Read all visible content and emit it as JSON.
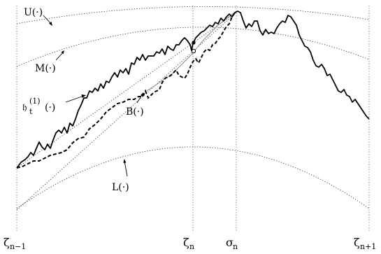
{
  "labels": {
    "U": "U(·)",
    "M": "M(·)",
    "h_base": "𝔥",
    "h_sub": "t",
    "h_sup": "(1)",
    "h_arg": "(·)",
    "B": "B(·)",
    "L": "L(·)"
  },
  "axis_labels": {
    "zeta_prev_base": "ζ",
    "zeta_prev_sub": "n−1",
    "zeta_n_base": "ζ",
    "zeta_n_sub": "n",
    "sigma_base": "σ",
    "sigma_sub": "n",
    "zeta_next_base": "ζ",
    "zeta_next_sub": "n+1"
  },
  "colors": {
    "ink": "#000000",
    "guide": "#555555",
    "gray_path": "#8a8a8a"
  }
}
